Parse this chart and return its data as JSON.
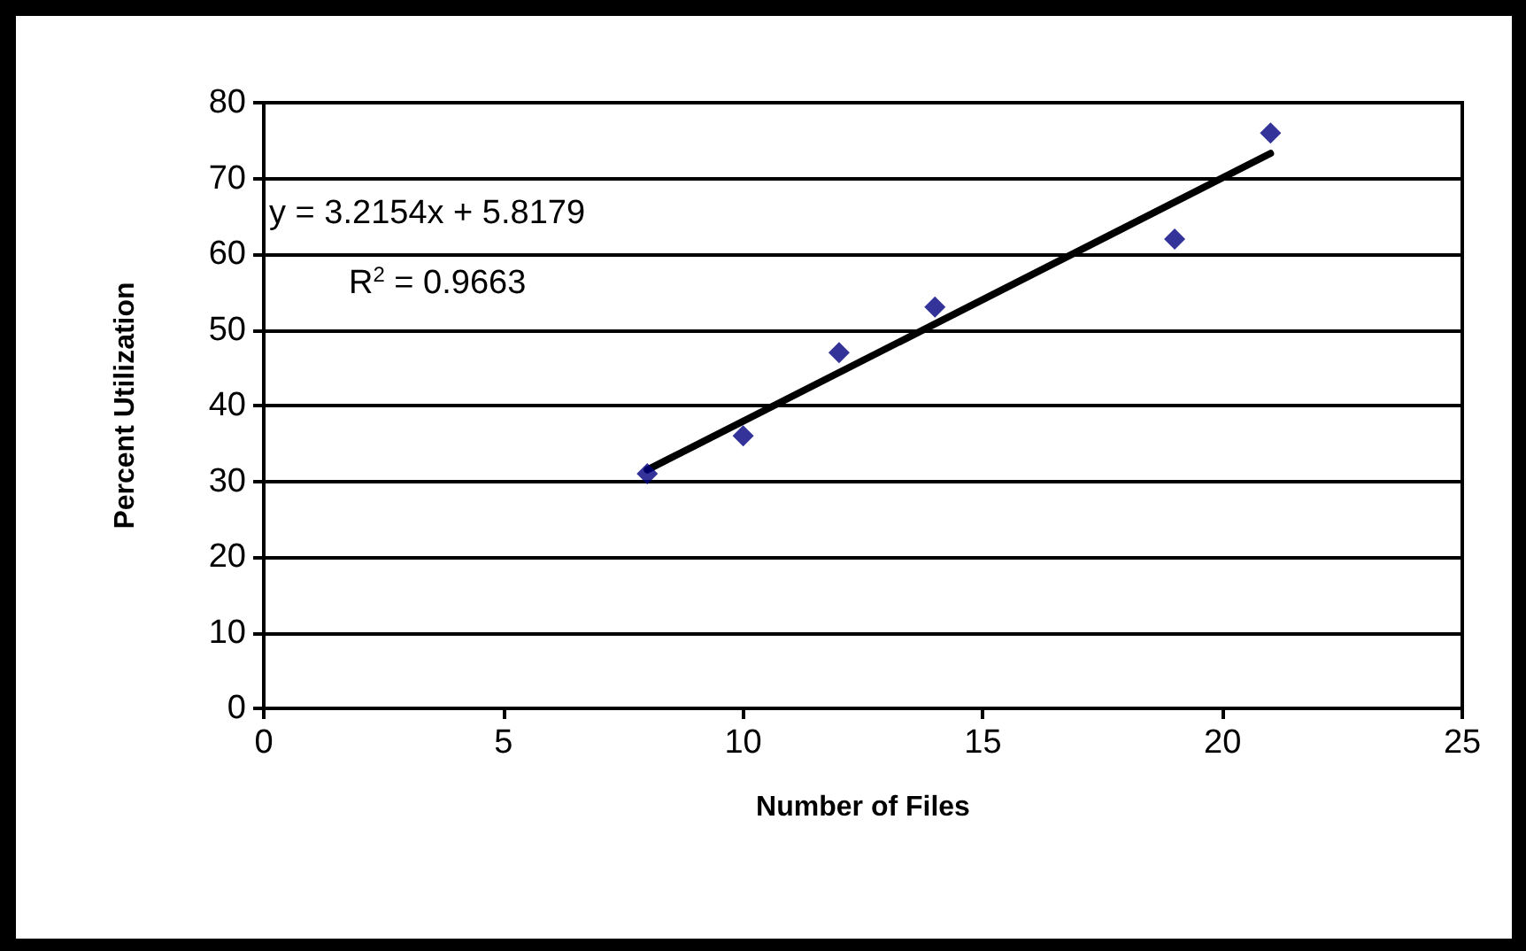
{
  "chart_data": {
    "type": "scatter",
    "xlabel": "Number of Files",
    "ylabel": "Percent Utilization",
    "annotations": [
      "y = 3.2154x + 5.8179",
      "R$^{2}$ = 0.9663"
    ],
    "xlim": [
      0,
      25
    ],
    "xticks": [
      0,
      5,
      10,
      15,
      20,
      25
    ],
    "ylim": [
      0,
      80
    ],
    "yticks": [
      0,
      10,
      20,
      30,
      40,
      50,
      60,
      70,
      80
    ],
    "grid": "y",
    "marker": "diamond",
    "x": [
      8,
      10,
      12,
      14,
      19,
      21
    ],
    "series": [
      {
        "color": "#000080",
        "values": [
          31,
          36,
          47,
          53,
          62,
          76
        ]
      },
      {
        "type": "line",
        "color": "#000000",
        "x": [
          8,
          21
        ],
        "values": [
          31.5,
          73.3
        ],
        "marker": "none",
        "line_style": "solid"
      }
    ]
  }
}
